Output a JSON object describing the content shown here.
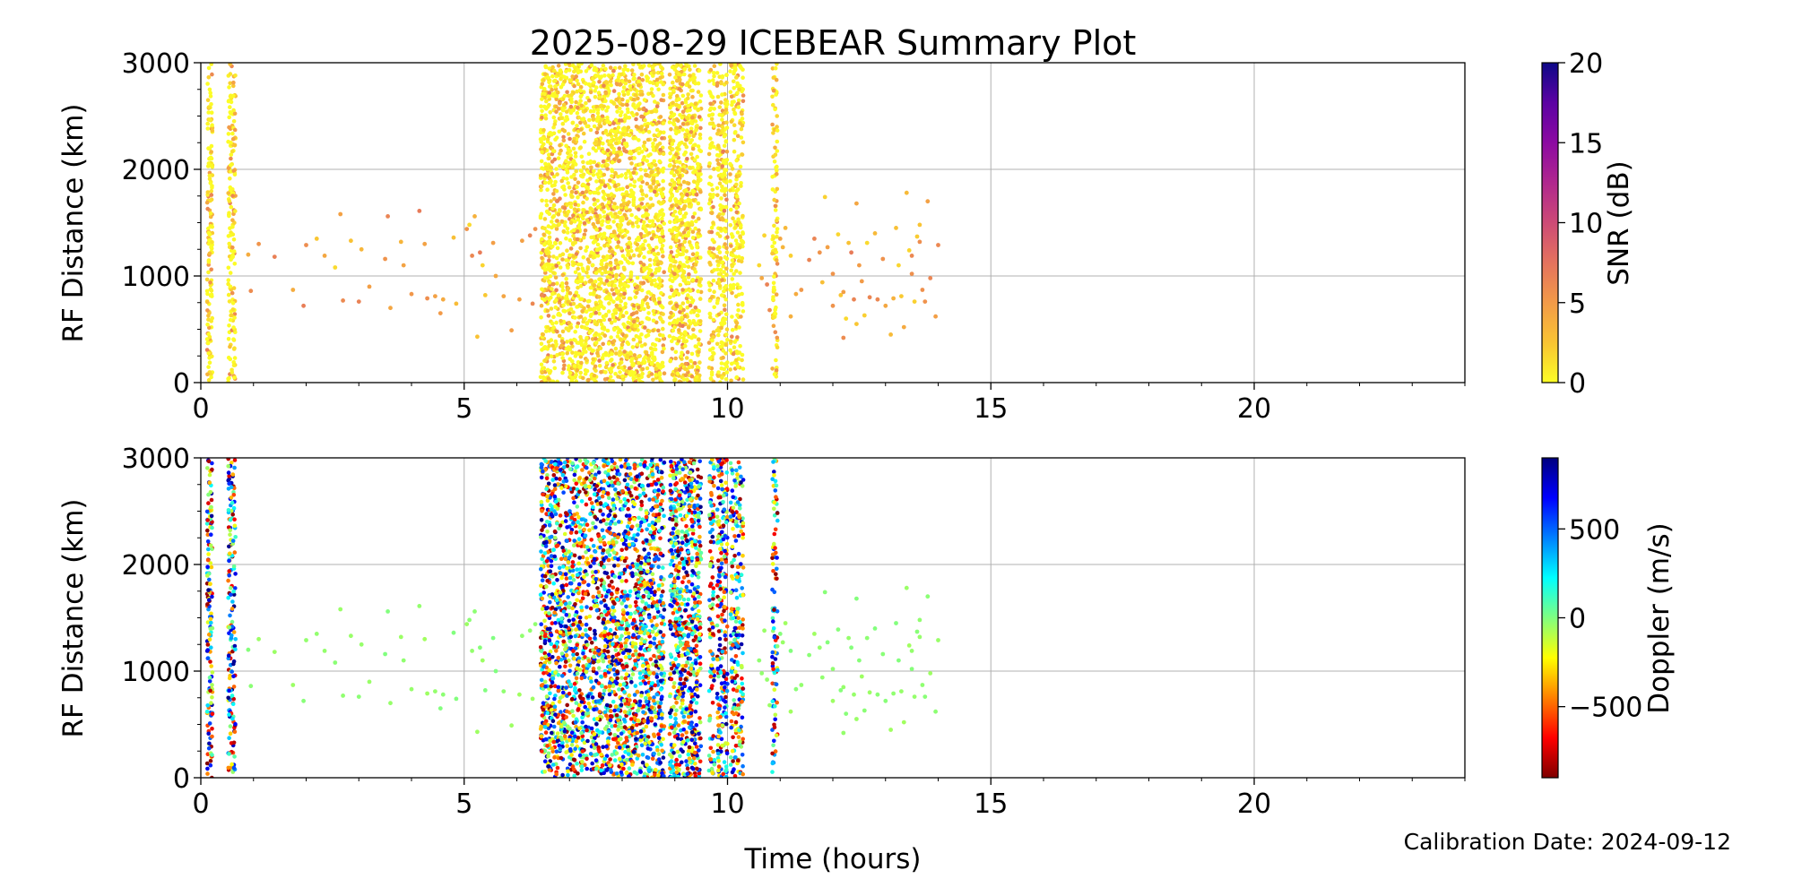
{
  "chart_data": {
    "type": "scatter",
    "title": "2025-08-29 ICEBEAR Summary Plot",
    "xlabel": "Time (hours)",
    "footer": "Calibration Date: 2024-09-12",
    "grid": true,
    "panels": [
      {
        "name": "snr",
        "ylabel": "RF Distance (km)",
        "xlim": [
          0,
          24
        ],
        "ylim": [
          0,
          3000
        ],
        "xticks": [
          0,
          5,
          10,
          15,
          20
        ],
        "yticks": [
          0,
          1000,
          2000,
          3000
        ],
        "colorbar": {
          "label": "SNR (dB)",
          "range": [
            0,
            20
          ],
          "ticks": [
            0,
            5,
            10,
            15,
            20
          ],
          "colormap": [
            "#fcfd26",
            "#f9c433",
            "#f29a48",
            "#e4725e",
            "#cd4a76",
            "#b0278e",
            "#8c0aa2",
            "#5c02a3",
            "#0d0887"
          ]
        }
      },
      {
        "name": "doppler",
        "ylabel": "RF Distance (km)",
        "xlim": [
          0,
          24
        ],
        "ylim": [
          0,
          3000
        ],
        "xticks": [
          0,
          5,
          10,
          15,
          20
        ],
        "yticks": [
          0,
          1000,
          2000,
          3000
        ],
        "colorbar": {
          "label": "Doppler (m/s)",
          "range": [
            -900,
            900
          ],
          "ticks": [
            -500,
            0,
            500
          ],
          "tick_labels": [
            "−500",
            "0",
            "500"
          ],
          "colormap": [
            "#7f0000",
            "#ff0000",
            "#ff8000",
            "#ffff00",
            "#80ff80",
            "#00ffff",
            "#0080ff",
            "#0000ff",
            "#00007f"
          ]
        }
      }
    ],
    "dense_bands": [
      {
        "x": [
          0.12,
          0.22
        ],
        "y": [
          0,
          3000
        ],
        "count": 150
      },
      {
        "x": [
          0.52,
          0.66
        ],
        "y": [
          0,
          3000
        ],
        "count": 160
      },
      {
        "x": [
          6.45,
          6.65
        ],
        "y": [
          0,
          3000
        ],
        "count": 250
      },
      {
        "x": [
          6.65,
          7.3
        ],
        "y": [
          0,
          3000
        ],
        "count": 650
      },
      {
        "x": [
          7.3,
          7.45
        ],
        "y": [
          0,
          3000
        ],
        "count": 120
      },
      {
        "x": [
          7.45,
          8.8
        ],
        "y": [
          0,
          3000
        ],
        "count": 1500
      },
      {
        "x": [
          8.9,
          9.5
        ],
        "y": [
          0,
          3000
        ],
        "count": 750
      },
      {
        "x": [
          9.65,
          9.75
        ],
        "y": [
          0,
          3000
        ],
        "count": 110
      },
      {
        "x": [
          9.8,
          10.0
        ],
        "y": [
          0,
          3000
        ],
        "count": 230
      },
      {
        "x": [
          10.05,
          10.3
        ],
        "y": [
          0,
          3000
        ],
        "count": 230
      },
      {
        "x": [
          10.85,
          10.95
        ],
        "y": [
          0,
          3000
        ],
        "count": 100
      }
    ],
    "sparse_points": [
      [
        0.9,
        1200
      ],
      [
        0.95,
        860
      ],
      [
        1.1,
        1300
      ],
      [
        1.4,
        1180
      ],
      [
        1.75,
        870
      ],
      [
        1.95,
        720
      ],
      [
        2.0,
        1290
      ],
      [
        2.2,
        1350
      ],
      [
        2.35,
        1190
      ],
      [
        2.55,
        1080
      ],
      [
        2.65,
        1580
      ],
      [
        2.7,
        770
      ],
      [
        2.85,
        1330
      ],
      [
        3.0,
        760
      ],
      [
        3.05,
        1250
      ],
      [
        3.2,
        900
      ],
      [
        3.5,
        1160
      ],
      [
        3.55,
        1560
      ],
      [
        3.6,
        700
      ],
      [
        3.8,
        1320
      ],
      [
        3.85,
        1100
      ],
      [
        4.0,
        830
      ],
      [
        4.15,
        1610
      ],
      [
        4.25,
        1300
      ],
      [
        4.3,
        790
      ],
      [
        4.45,
        810
      ],
      [
        4.55,
        650
      ],
      [
        4.6,
        780
      ],
      [
        4.8,
        1360
      ],
      [
        4.85,
        740
      ],
      [
        5.05,
        1440
      ],
      [
        5.1,
        1480
      ],
      [
        5.15,
        1190
      ],
      [
        5.2,
        1560
      ],
      [
        5.25,
        430
      ],
      [
        5.3,
        1220
      ],
      [
        5.35,
        1100
      ],
      [
        5.4,
        820
      ],
      [
        5.55,
        1310
      ],
      [
        5.6,
        1000
      ],
      [
        5.75,
        810
      ],
      [
        5.9,
        490
      ],
      [
        6.05,
        780
      ],
      [
        6.1,
        1330
      ],
      [
        6.25,
        1380
      ],
      [
        6.3,
        740
      ],
      [
        6.35,
        1440
      ],
      [
        10.6,
        1100
      ],
      [
        10.65,
        980
      ],
      [
        10.7,
        1380
      ],
      [
        10.75,
        920
      ],
      [
        10.8,
        680
      ],
      [
        11.0,
        1350
      ],
      [
        11.05,
        1270
      ],
      [
        11.1,
        1450
      ],
      [
        11.2,
        1190
      ],
      [
        11.3,
        830
      ],
      [
        11.4,
        870
      ],
      [
        11.55,
        1150
      ],
      [
        11.65,
        1350
      ],
      [
        11.75,
        1220
      ],
      [
        11.8,
        940
      ],
      [
        11.85,
        1740
      ],
      [
        11.9,
        1270
      ],
      [
        12.0,
        1020
      ],
      [
        12.1,
        1390
      ],
      [
        12.15,
        820
      ],
      [
        12.2,
        850
      ],
      [
        12.25,
        600
      ],
      [
        12.3,
        1310
      ],
      [
        12.35,
        1220
      ],
      [
        12.4,
        780
      ],
      [
        12.45,
        1680
      ],
      [
        12.5,
        1100
      ],
      [
        12.55,
        950
      ],
      [
        12.6,
        630
      ],
      [
        12.65,
        1310
      ],
      [
        12.7,
        800
      ],
      [
        12.8,
        1400
      ],
      [
        12.85,
        780
      ],
      [
        12.95,
        1160
      ],
      [
        13.0,
        720
      ],
      [
        13.1,
        450
      ],
      [
        13.2,
        1450
      ],
      [
        13.25,
        1100
      ],
      [
        13.3,
        810
      ],
      [
        13.35,
        520
      ],
      [
        13.4,
        1780
      ],
      [
        13.45,
        1240
      ],
      [
        13.5,
        1190
      ],
      [
        13.55,
        760
      ],
      [
        13.6,
        1370
      ],
      [
        13.65,
        1480
      ],
      [
        13.7,
        870
      ],
      [
        13.75,
        760
      ],
      [
        13.8,
        1700
      ],
      [
        13.85,
        980
      ],
      [
        13.95,
        620
      ],
      [
        14.0,
        1290
      ],
      [
        13.15,
        790
      ],
      [
        11.2,
        620
      ],
      [
        12.0,
        720
      ],
      [
        12.2,
        420
      ],
      [
        12.45,
        550
      ],
      [
        13.5,
        1020
      ],
      [
        13.65,
        1320
      ]
    ]
  }
}
